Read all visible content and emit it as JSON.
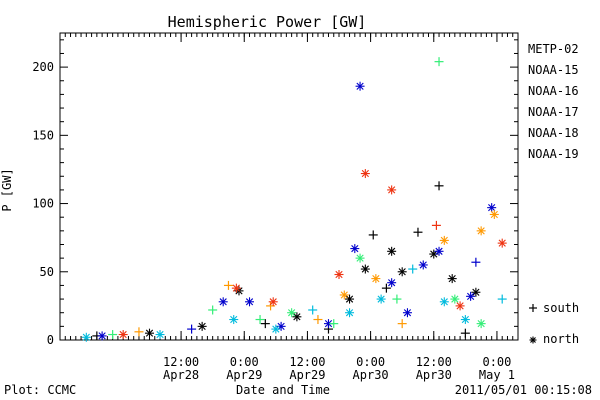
{
  "chart_data": {
    "type": "scatter",
    "title": "Hemispheric Power [GW]",
    "ylabel": "P [GW]",
    "xlabel": "Date and Time",
    "ylim": [
      0,
      225
    ],
    "yticks": [
      0,
      50,
      100,
      150,
      200
    ],
    "xlim": [
      "2011-04-27 13:00",
      "2011-05-01 04:00"
    ],
    "xticks": [
      {
        "t": "2011-04-28 12:00",
        "line1": "12:00",
        "line2": "Apr28"
      },
      {
        "t": "2011-04-29 00:00",
        "line1": "0:00",
        "line2": "Apr29"
      },
      {
        "t": "2011-04-29 12:00",
        "line1": "12:00",
        "line2": "Apr29"
      },
      {
        "t": "2011-04-30 00:00",
        "line1": "0:00",
        "line2": "Apr30"
      },
      {
        "t": "2011-04-30 12:00",
        "line1": "12:00",
        "line2": "Apr30"
      },
      {
        "t": "2011-05-01 00:00",
        "line1": "0:00",
        "line2": "May 1"
      }
    ],
    "series": [
      {
        "name": "METP-02",
        "color": "#000000",
        "points": [
          {
            "t": "2011-04-27 20:00",
            "y": 3,
            "m": "+"
          },
          {
            "t": "2011-04-28 06:00",
            "y": 5,
            "m": "*"
          },
          {
            "t": "2011-04-28 16:00",
            "y": 10,
            "m": "*"
          },
          {
            "t": "2011-04-28 23:00",
            "y": 36,
            "m": "*"
          },
          {
            "t": "2011-04-29 04:00",
            "y": 12,
            "m": "+"
          },
          {
            "t": "2011-04-29 10:00",
            "y": 17,
            "m": "*"
          },
          {
            "t": "2011-04-29 16:00",
            "y": 8,
            "m": "+"
          },
          {
            "t": "2011-04-29 20:00",
            "y": 30,
            "m": "*"
          },
          {
            "t": "2011-04-29 23:00",
            "y": 52,
            "m": "*"
          },
          {
            "t": "2011-04-30 00:30",
            "y": 77,
            "m": "+"
          },
          {
            "t": "2011-04-30 03:00",
            "y": 38,
            "m": "+"
          },
          {
            "t": "2011-04-30 04:00",
            "y": 65,
            "m": "*"
          },
          {
            "t": "2011-04-30 06:00",
            "y": 50,
            "m": "*"
          },
          {
            "t": "2011-04-30 09:00",
            "y": 79,
            "m": "+"
          },
          {
            "t": "2011-04-30 13:00",
            "y": 113,
            "m": "+"
          },
          {
            "t": "2011-04-30 12:00",
            "y": 63,
            "m": "*"
          },
          {
            "t": "2011-04-30 15:30",
            "y": 45,
            "m": "*"
          },
          {
            "t": "2011-04-30 18:00",
            "y": 5,
            "m": "+"
          },
          {
            "t": "2011-04-30 20:00",
            "y": 35,
            "m": "*"
          }
        ]
      },
      {
        "name": "NOAA-15",
        "color": "#0000cc",
        "points": [
          {
            "t": "2011-04-27 21:00",
            "y": 3,
            "m": "*"
          },
          {
            "t": "2011-04-28 14:00",
            "y": 8,
            "m": "+"
          },
          {
            "t": "2011-04-28 20:00",
            "y": 28,
            "m": "*"
          },
          {
            "t": "2011-04-29 01:00",
            "y": 28,
            "m": "*"
          },
          {
            "t": "2011-04-29 07:00",
            "y": 10,
            "m": "*"
          },
          {
            "t": "2011-04-29 16:00",
            "y": 12,
            "m": "*"
          },
          {
            "t": "2011-04-29 21:00",
            "y": 67,
            "m": "*"
          },
          {
            "t": "2011-04-29 22:00",
            "y": 186,
            "m": "*"
          },
          {
            "t": "2011-04-30 04:00",
            "y": 42,
            "m": "*"
          },
          {
            "t": "2011-04-30 07:00",
            "y": 20,
            "m": "*"
          },
          {
            "t": "2011-04-30 10:00",
            "y": 55,
            "m": "*"
          },
          {
            "t": "2011-04-30 13:00",
            "y": 65,
            "m": "*"
          },
          {
            "t": "2011-04-30 20:00",
            "y": 57,
            "m": "+"
          },
          {
            "t": "2011-04-30 19:00",
            "y": 32,
            "m": "*"
          },
          {
            "t": "2011-04-30 23:00",
            "y": 97,
            "m": "*"
          }
        ]
      },
      {
        "name": "NOAA-16",
        "color": "#00bbdd",
        "points": [
          {
            "t": "2011-04-27 18:00",
            "y": 2,
            "m": "*"
          },
          {
            "t": "2011-04-28 08:00",
            "y": 4,
            "m": "*"
          },
          {
            "t": "2011-04-28 22:00",
            "y": 15,
            "m": "*"
          },
          {
            "t": "2011-04-29 06:00",
            "y": 8,
            "m": "*"
          },
          {
            "t": "2011-04-29 13:00",
            "y": 22,
            "m": "+"
          },
          {
            "t": "2011-04-29 20:00",
            "y": 20,
            "m": "*"
          },
          {
            "t": "2011-04-30 02:00",
            "y": 30,
            "m": "*"
          },
          {
            "t": "2011-04-30 08:00",
            "y": 52,
            "m": "+"
          },
          {
            "t": "2011-04-30 14:00",
            "y": 28,
            "m": "*"
          },
          {
            "t": "2011-04-30 18:00",
            "y": 15,
            "m": "*"
          },
          {
            "t": "2011-04-31 01:00",
            "y": 30,
            "m": "+"
          }
        ]
      },
      {
        "name": "NOAA-17",
        "color": "#33ee77",
        "points": [
          {
            "t": "2011-04-27 23:00",
            "y": 4,
            "m": "+"
          },
          {
            "t": "2011-04-28 18:00",
            "y": 22,
            "m": "+"
          },
          {
            "t": "2011-04-29 03:00",
            "y": 15,
            "m": "+"
          },
          {
            "t": "2011-04-29 09:00",
            "y": 20,
            "m": "*"
          },
          {
            "t": "2011-04-29 17:00",
            "y": 12,
            "m": "+"
          },
          {
            "t": "2011-04-29 22:00",
            "y": 60,
            "m": "*"
          },
          {
            "t": "2011-04-30 05:00",
            "y": 30,
            "m": "+"
          },
          {
            "t": "2011-04-30 13:00",
            "y": 204,
            "m": "+"
          },
          {
            "t": "2011-04-30 16:00",
            "y": 30,
            "m": "*"
          },
          {
            "t": "2011-04-30 21:00",
            "y": 12,
            "m": "*"
          }
        ]
      },
      {
        "name": "NOAA-18",
        "color": "#ff9900",
        "points": [
          {
            "t": "2011-04-28 04:00",
            "y": 6,
            "m": "+"
          },
          {
            "t": "2011-04-28 21:00",
            "y": 40,
            "m": "+"
          },
          {
            "t": "2011-04-29 05:00",
            "y": 25,
            "m": "+"
          },
          {
            "t": "2011-04-29 14:00",
            "y": 15,
            "m": "+"
          },
          {
            "t": "2011-04-29 19:00",
            "y": 33,
            "m": "*"
          },
          {
            "t": "2011-04-30 01:00",
            "y": 45,
            "m": "*"
          },
          {
            "t": "2011-04-30 06:00",
            "y": 12,
            "m": "+"
          },
          {
            "t": "2011-04-30 14:00",
            "y": 73,
            "m": "*"
          },
          {
            "t": "2011-04-30 21:00",
            "y": 80,
            "m": "*"
          },
          {
            "t": "2011-04-30 23:30",
            "y": 92,
            "m": "*"
          }
        ]
      },
      {
        "name": "NOAA-19",
        "color": "#ee3311",
        "points": [
          {
            "t": "2011-04-28 01:00",
            "y": 4,
            "m": "*"
          },
          {
            "t": "2011-04-28 22:30",
            "y": 38,
            "m": "*"
          },
          {
            "t": "2011-04-29 05:30",
            "y": 28,
            "m": "*"
          },
          {
            "t": "2011-04-29 18:00",
            "y": 48,
            "m": "*"
          },
          {
            "t": "2011-04-29 23:00",
            "y": 122,
            "m": "*"
          },
          {
            "t": "2011-04-30 04:00",
            "y": 110,
            "m": "*"
          },
          {
            "t": "2011-04-30 12:30",
            "y": 84,
            "m": "+"
          },
          {
            "t": "2011-04-30 17:00",
            "y": 25,
            "m": "*"
          },
          {
            "t": "2011-05-01 01:00",
            "y": 71,
            "m": "*"
          }
        ]
      }
    ],
    "symbol_legend": [
      {
        "symbol": "+",
        "label": "south"
      },
      {
        "symbol": "*",
        "label": "north"
      }
    ],
    "legend_placement": "right"
  },
  "footer": {
    "left": "Plot: CCMC",
    "right": "2011/05/01 00:15:08"
  }
}
